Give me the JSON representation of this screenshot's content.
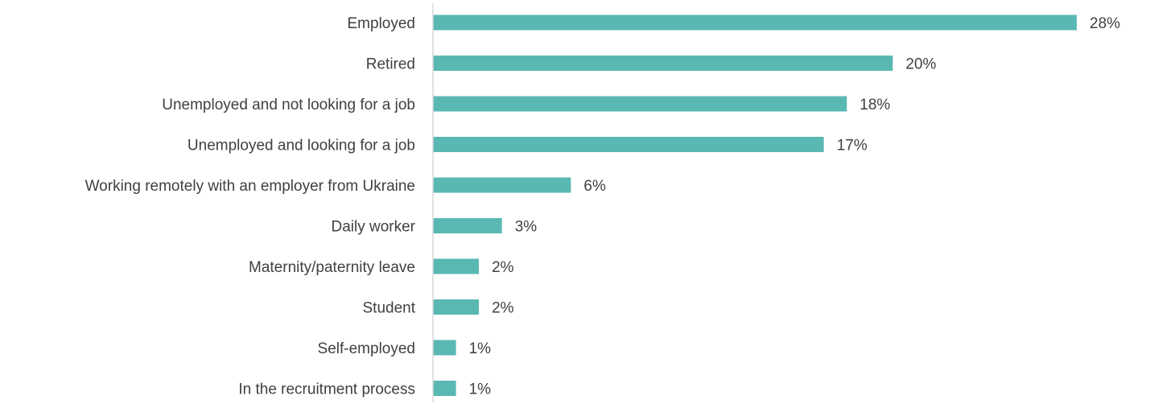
{
  "chart_data": {
    "type": "bar",
    "orientation": "horizontal",
    "categories": [
      "Employed",
      "Retired",
      "Unemployed and not looking for a job",
      "Unemployed and looking for a job",
      "Working remotely with an employer from Ukraine",
      "Daily worker",
      "Maternity/paternity leave",
      "Student",
      "Self-employed",
      "In the recruitment process"
    ],
    "values": [
      28,
      20,
      18,
      17,
      6,
      3,
      2,
      2,
      1,
      1
    ],
    "value_labels": [
      "28%",
      "20%",
      "18%",
      "17%",
      "6%",
      "3%",
      "2%",
      "2%",
      "1%",
      "1%"
    ],
    "title": "",
    "xlabel": "",
    "ylabel": "",
    "grid": false,
    "legend": "none",
    "bar_color": "#5ab8b3",
    "axis_color": "#d9d9d9",
    "text_color": "#404040"
  }
}
